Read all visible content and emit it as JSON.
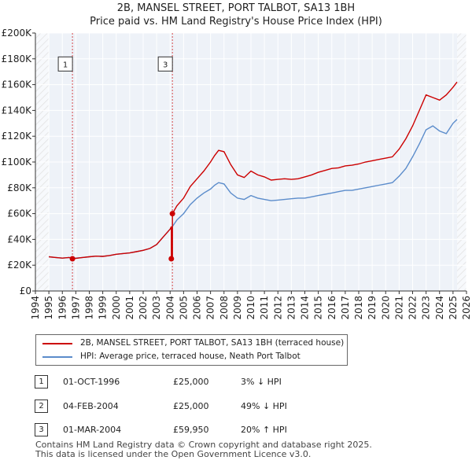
{
  "title_line1": "2B, MANSEL STREET, PORT TALBOT, SA13 1BH",
  "title_line2": "Price paid vs. HM Land Registry's House Price Index (HPI)",
  "chart_data": {
    "type": "line",
    "y_ticks": [
      0,
      20000,
      40000,
      60000,
      80000,
      100000,
      120000,
      140000,
      160000,
      180000,
      200000
    ],
    "y_tick_labels": [
      "£0",
      "£20K",
      "£40K",
      "£60K",
      "£80K",
      "£100K",
      "£120K",
      "£140K",
      "£160K",
      "£180K",
      "£200K"
    ],
    "ylim": [
      0,
      200000
    ],
    "xlim": [
      1994,
      2026
    ],
    "x_ticks": [
      1994,
      1995,
      1996,
      1997,
      1998,
      1999,
      2000,
      2001,
      2002,
      2003,
      2004,
      2005,
      2006,
      2007,
      2008,
      2009,
      2010,
      2011,
      2012,
      2013,
      2014,
      2015,
      2016,
      2017,
      2018,
      2019,
      2020,
      2021,
      2022,
      2023,
      2024,
      2025,
      2026
    ],
    "x_tick_labels": [
      "1994",
      "1995",
      "1996",
      "1997",
      "1998",
      "1999",
      "2000",
      "2001",
      "2002",
      "2003",
      "2004",
      "2005",
      "2006",
      "2007",
      "2008",
      "2009",
      "2010",
      "2011",
      "2012",
      "2013",
      "2014",
      "2015",
      "2016",
      "2017",
      "2018",
      "2019",
      "2020",
      "2021",
      "2022",
      "2023",
      "2024",
      "2025",
      "2026"
    ],
    "data_start_year": 1995.0,
    "hatch_after_year": 2025.3,
    "series": [
      {
        "name": "2B, MANSEL STREET, PORT TALBOT, SA13 1BH (terraced house)",
        "color": "#cc0000",
        "x": [
          1995.0,
          1995.5,
          1996.0,
          1996.5,
          1996.75,
          1997.0,
          1997.5,
          1998.0,
          1998.5,
          1999.0,
          1999.5,
          2000.0,
          2000.5,
          2001.0,
          2001.5,
          2002.0,
          2002.5,
          2003.0,
          2003.5,
          2004.0,
          2004.09,
          2004.09,
          2004.17,
          2004.17,
          2004.5,
          2005.0,
          2005.5,
          2006.0,
          2006.5,
          2007.0,
          2007.3,
          2007.6,
          2008.0,
          2008.5,
          2009.0,
          2009.5,
          2010.0,
          2010.5,
          2011.0,
          2011.5,
          2012.0,
          2012.5,
          2013.0,
          2013.5,
          2014.0,
          2014.5,
          2015.0,
          2015.5,
          2016.0,
          2016.5,
          2017.0,
          2017.5,
          2018.0,
          2018.5,
          2019.0,
          2019.5,
          2020.0,
          2020.5,
          2021.0,
          2021.5,
          2022.0,
          2022.5,
          2023.0,
          2023.5,
          2024.0,
          2024.5,
          2025.0,
          2025.3
        ],
        "values": [
          26500,
          26000,
          25500,
          26000,
          25000,
          25300,
          26000,
          26500,
          27000,
          26800,
          27500,
          28500,
          29000,
          29500,
          30500,
          31500,
          33000,
          36000,
          42000,
          48000,
          50000,
          25000,
          25000,
          59950,
          66000,
          72000,
          81000,
          87000,
          93000,
          100000,
          105000,
          109000,
          108000,
          98000,
          90000,
          88000,
          93000,
          90000,
          88500,
          86000,
          86500,
          87000,
          86500,
          87000,
          88500,
          90000,
          92000,
          93500,
          95000,
          95500,
          97000,
          97500,
          98500,
          100000,
          101000,
          102000,
          103000,
          104000,
          110000,
          118000,
          128000,
          140000,
          152000,
          150000,
          148000,
          152000,
          158000,
          162000
        ]
      },
      {
        "name": "HPI: Average price, terraced house, Neath Port Talbot",
        "color": "#5b8ccb",
        "x": [
          1995.0,
          1995.5,
          1996.0,
          1996.5,
          1996.75,
          1997.0,
          1997.5,
          1998.0,
          1998.5,
          1999.0,
          1999.5,
          2000.0,
          2000.5,
          2001.0,
          2001.5,
          2002.0,
          2002.5,
          2003.0,
          2003.5,
          2004.0,
          2004.17,
          2004.5,
          2005.0,
          2005.5,
          2006.0,
          2006.5,
          2007.0,
          2007.3,
          2007.6,
          2008.0,
          2008.5,
          2009.0,
          2009.5,
          2010.0,
          2010.5,
          2011.0,
          2011.5,
          2012.0,
          2012.5,
          2013.0,
          2013.5,
          2014.0,
          2014.5,
          2015.0,
          2015.5,
          2016.0,
          2016.5,
          2017.0,
          2017.5,
          2018.0,
          2018.5,
          2019.0,
          2019.5,
          2020.0,
          2020.5,
          2021.0,
          2021.5,
          2022.0,
          2022.5,
          2023.0,
          2023.5,
          2024.0,
          2024.5,
          2025.0,
          2025.3
        ],
        "values": [
          26500,
          26000,
          25500,
          26000,
          25800,
          25500,
          26000,
          26500,
          27000,
          26800,
          27500,
          28500,
          29000,
          29500,
          30500,
          31500,
          33000,
          36000,
          42000,
          48000,
          50000,
          55000,
          60000,
          67000,
          72000,
          76000,
          79000,
          82000,
          84000,
          83000,
          76000,
          72000,
          71000,
          74000,
          72000,
          71000,
          70000,
          70500,
          71000,
          71500,
          72000,
          72000,
          73000,
          74000,
          75000,
          76000,
          77000,
          78000,
          78000,
          79000,
          80000,
          81000,
          82000,
          83000,
          84000,
          89000,
          95000,
          104000,
          114000,
          125000,
          128000,
          124000,
          122000,
          130000,
          133000
        ]
      }
    ],
    "sales": [
      {
        "label": "1",
        "date": "01-OCT-1996",
        "year": 1996.75,
        "price": 25000,
        "price_text": "£25,000",
        "hpi_text": "3% ↓ HPI"
      },
      {
        "label": "2",
        "date": "04-FEB-2004",
        "year": 2004.09,
        "price": 25000,
        "price_text": "£25,000",
        "hpi_text": "49% ↓ HPI"
      },
      {
        "label": "3",
        "date": "01-MAR-2004",
        "year": 2004.17,
        "price": 59950,
        "price_text": "£59,950",
        "hpi_text": "20% ↑ HPI"
      }
    ],
    "chart_markers": [
      {
        "label": "1",
        "year": 1996.75,
        "level": 176000
      },
      {
        "label": "3",
        "year": 2004.17,
        "level": 176000
      }
    ]
  },
  "footer_line1": "Contains HM Land Registry data © Crown copyright and database right 2025.",
  "footer_line2": "This data is licensed under the Open Government Licence v3.0."
}
